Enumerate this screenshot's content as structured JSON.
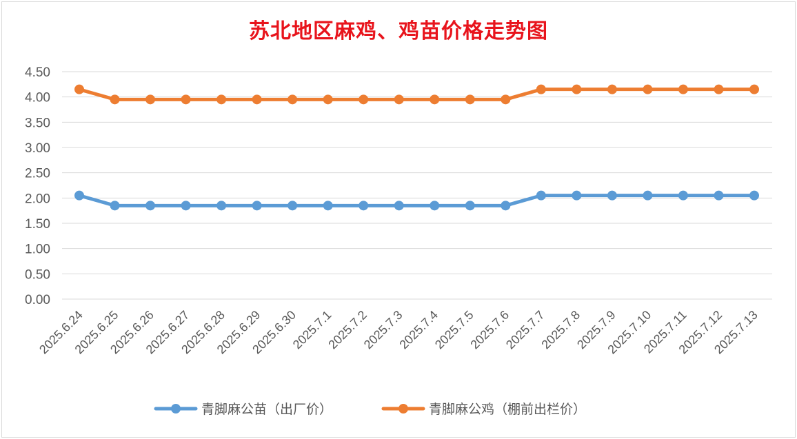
{
  "chart_data": {
    "type": "line",
    "title": "苏北地区麻鸡、鸡苗价格走势图",
    "xlabel": "",
    "ylabel": "",
    "ylim": [
      0,
      4.5
    ],
    "yticks": [
      "0.00",
      "0.50",
      "1.00",
      "1.50",
      "2.00",
      "2.50",
      "3.00",
      "3.50",
      "4.00",
      "4.50"
    ],
    "grid": true,
    "legend_position": "bottom",
    "categories": [
      "2025.6.24",
      "2025.6.25",
      "2025.6.26",
      "2025.6.27",
      "2025.6.28",
      "2025.6.29",
      "2025.6.30",
      "2025.7.1",
      "2025.7.2",
      "2025.7.3",
      "2025.7.4",
      "2025.7.5",
      "2025.7.6",
      "2025.7.7",
      "2025.7.8",
      "2025.7.9",
      "2025.7.10",
      "2025.7.11",
      "2025.7.12",
      "2025.7.13"
    ],
    "series": [
      {
        "name": "青脚麻公苗（出厂价）",
        "color": "#5b9bd5",
        "values": [
          2.05,
          1.85,
          1.85,
          1.85,
          1.85,
          1.85,
          1.85,
          1.85,
          1.85,
          1.85,
          1.85,
          1.85,
          1.85,
          2.05,
          2.05,
          2.05,
          2.05,
          2.05,
          2.05,
          2.05
        ]
      },
      {
        "name": "青脚麻公鸡（棚前出栏价）",
        "color": "#ed7d31",
        "values": [
          4.15,
          3.95,
          3.95,
          3.95,
          3.95,
          3.95,
          3.95,
          3.95,
          3.95,
          3.95,
          3.95,
          3.95,
          3.95,
          4.15,
          4.15,
          4.15,
          4.15,
          4.15,
          4.15,
          4.15
        ]
      }
    ]
  }
}
